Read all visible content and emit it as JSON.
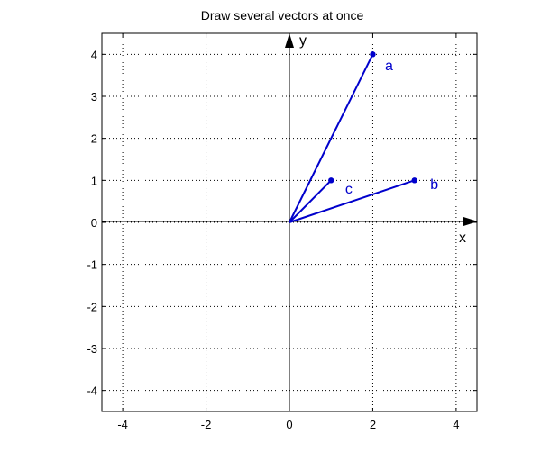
{
  "chart_data": {
    "type": "line",
    "title": "Draw several vectors at once",
    "xlabel": "x",
    "ylabel": "y",
    "xlim": [
      -4.5,
      4.5
    ],
    "ylim": [
      -4.5,
      4.5
    ],
    "xticks": [
      -4,
      -2,
      0,
      2,
      4
    ],
    "yticks": [
      -4,
      -3,
      -2,
      -1,
      0,
      1,
      2,
      3,
      4
    ],
    "grid": true,
    "origin": [
      0,
      0
    ],
    "vector_color": "#0000cc",
    "axis_color": "#000000",
    "series": [
      {
        "name": "a",
        "x": [
          0,
          2
        ],
        "y": [
          0,
          4
        ]
      },
      {
        "name": "b",
        "x": [
          0,
          3
        ],
        "y": [
          0,
          1
        ]
      },
      {
        "name": "c",
        "x": [
          0,
          1
        ],
        "y": [
          0,
          1
        ]
      }
    ]
  }
}
